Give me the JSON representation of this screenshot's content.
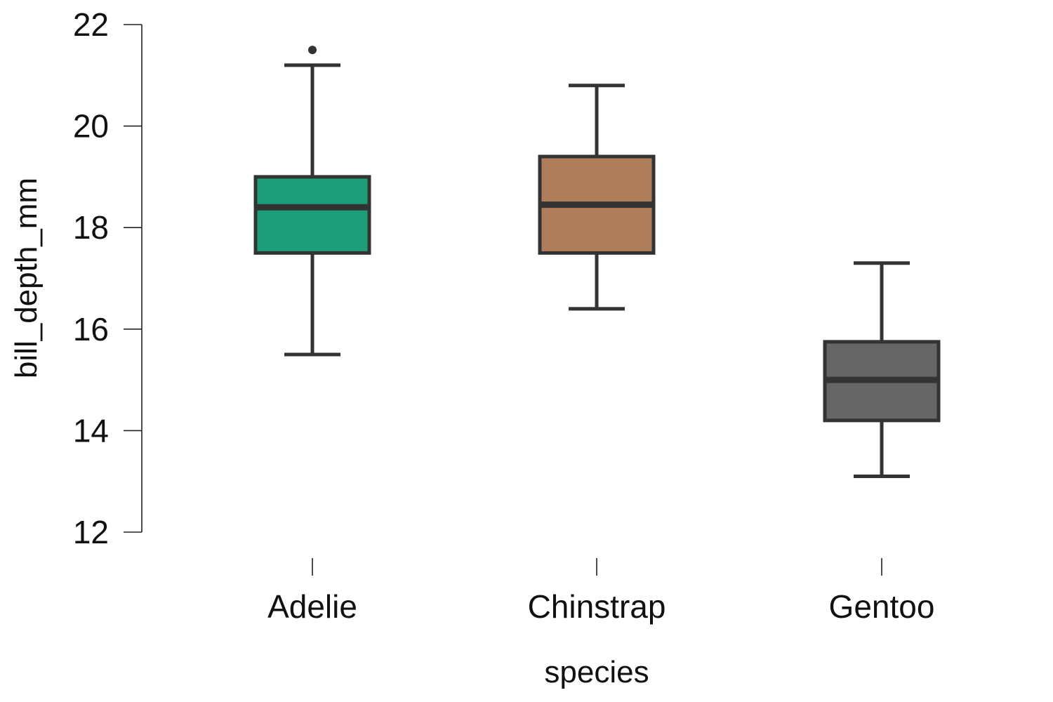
{
  "chart_data": {
    "type": "box",
    "xlabel": "species",
    "ylabel": "bill_depth_mm",
    "ylim": [
      12,
      22
    ],
    "yticks": [
      12,
      14,
      16,
      18,
      20,
      22
    ],
    "categories": [
      "Adelie",
      "Chinstrap",
      "Gentoo"
    ],
    "boxes": [
      {
        "category": "Adelie",
        "whisker_low": 15.5,
        "q1": 17.5,
        "median": 18.4,
        "q3": 19.0,
        "whisker_high": 21.2,
        "outliers": [
          21.5
        ],
        "color": "#1b9e77"
      },
      {
        "category": "Chinstrap",
        "whisker_low": 16.4,
        "q1": 17.5,
        "median": 18.45,
        "q3": 19.4,
        "whisker_high": 20.8,
        "outliers": [],
        "color": "#b07d5b"
      },
      {
        "category": "Gentoo",
        "whisker_low": 13.1,
        "q1": 14.2,
        "median": 15.0,
        "q3": 15.75,
        "whisker_high": 17.3,
        "outliers": [],
        "color": "#666666"
      }
    ],
    "grid": false,
    "legend": "none"
  }
}
